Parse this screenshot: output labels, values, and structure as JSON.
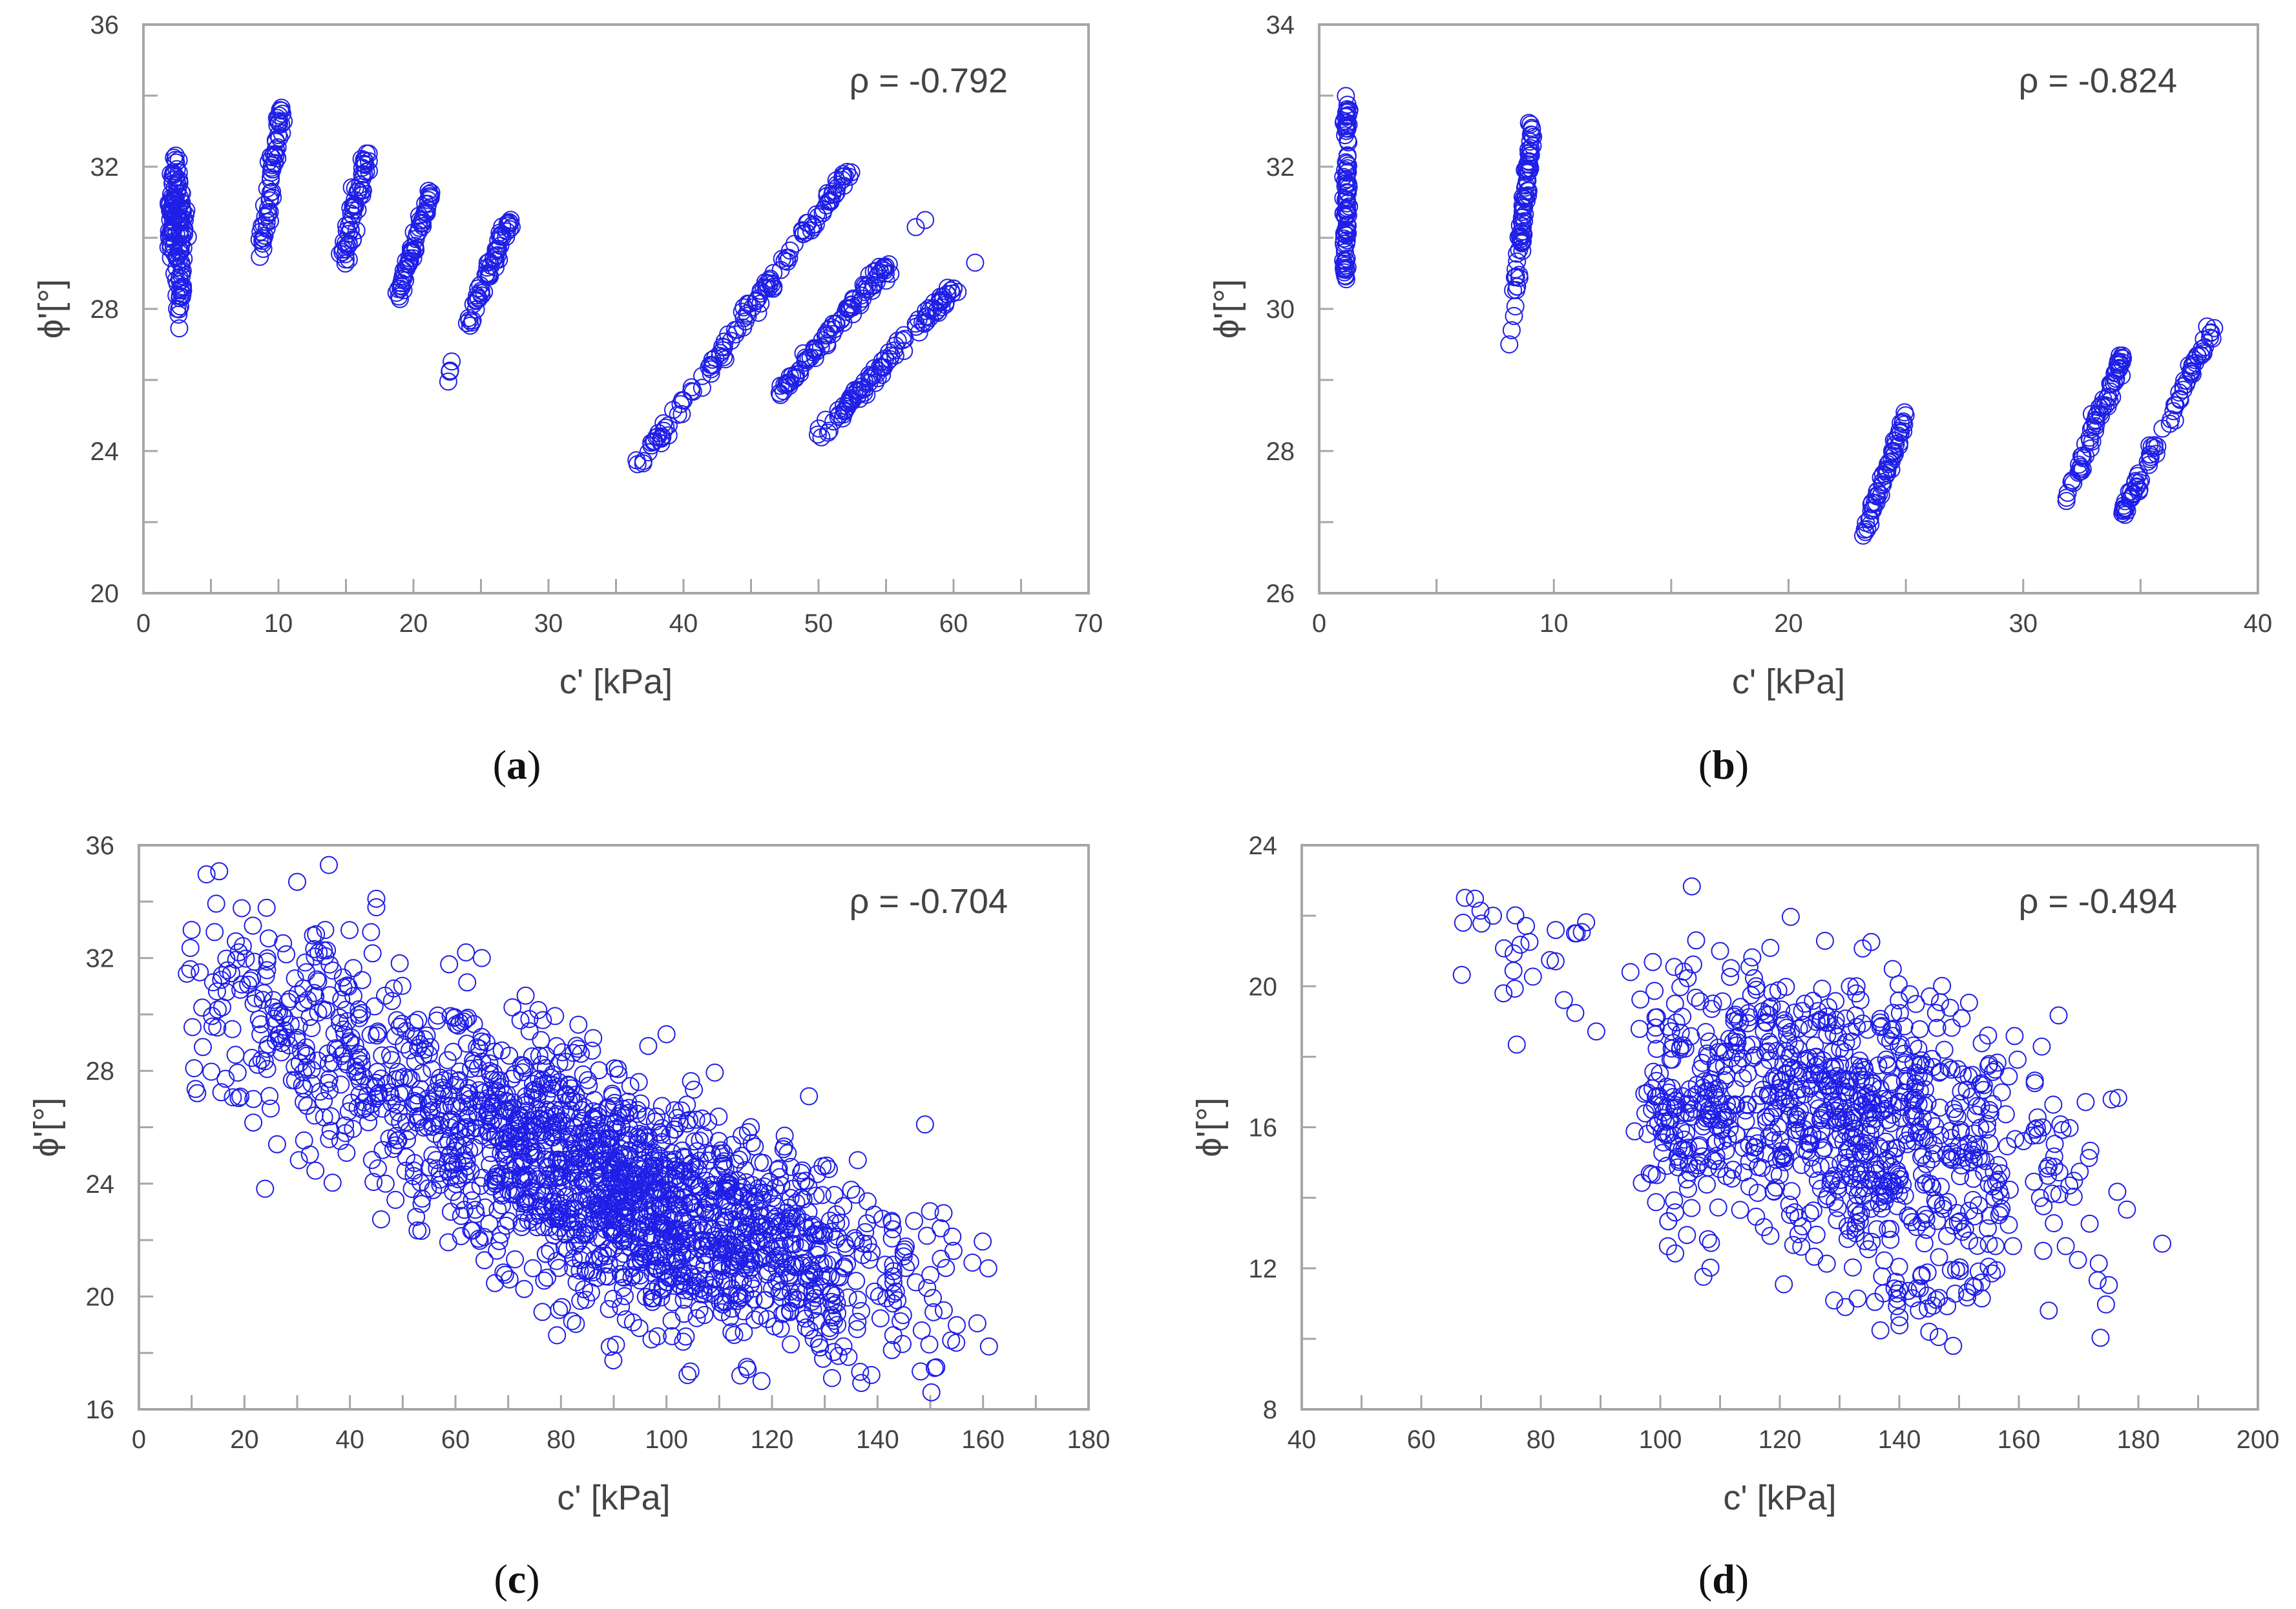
{
  "figure": {
    "marker_color": "#1f1fe6",
    "axis_color": "#a6a6a6",
    "text_color": "#444444"
  },
  "chart_data": [
    {
      "id": "a",
      "type": "scatter",
      "caption": "a",
      "annotation": "ρ = -0.792",
      "xlabel": "c' [kPa]",
      "ylabel": "ϕ'[°]",
      "xlim": [
        0,
        70
      ],
      "ylim": [
        20,
        36
      ],
      "xticks": [
        0,
        10,
        20,
        30,
        40,
        50,
        60,
        70
      ],
      "yticks": [
        20,
        24,
        28,
        32,
        36
      ],
      "xtick_labels": [
        "0",
        "10",
        "20",
        "30",
        "40",
        "50",
        "60",
        "70"
      ],
      "ytick_labels": [
        "20",
        "24",
        "28",
        "32",
        "36"
      ],
      "clusters": [
        {
          "shape": "line",
          "x0": 2.0,
          "y0": 29.6,
          "x1": 2.4,
          "y1": 32.1,
          "n": 70,
          "jx": 0.2,
          "jy": 0.25
        },
        {
          "shape": "line",
          "x0": 2.6,
          "y0": 27.9,
          "x1": 2.9,
          "y1": 31.0,
          "n": 70,
          "jx": 0.2,
          "jy": 0.25
        },
        {
          "shape": "line",
          "x0": 8.8,
          "y0": 29.7,
          "x1": 10.3,
          "y1": 33.7,
          "n": 60,
          "jx": 0.15,
          "jy": 0.1
        },
        {
          "shape": "line",
          "x0": 14.8,
          "y0": 29.4,
          "x1": 16.6,
          "y1": 32.4,
          "n": 60,
          "jx": 0.15,
          "jy": 0.1
        },
        {
          "shape": "line",
          "x0": 18.8,
          "y0": 28.3,
          "x1": 21.3,
          "y1": 31.3,
          "n": 60,
          "jx": 0.15,
          "jy": 0.1
        },
        {
          "shape": "line",
          "x0": 22.3,
          "y0": 25.8,
          "x1": 23.0,
          "y1": 26.4,
          "n": 4,
          "jx": 0.1,
          "jy": 0.1
        },
        {
          "shape": "line",
          "x0": 24.0,
          "y0": 27.5,
          "x1": 27.2,
          "y1": 30.6,
          "n": 60,
          "jx": 0.15,
          "jy": 0.1
        },
        {
          "shape": "line",
          "x0": 36.8,
          "y0": 23.6,
          "x1": 52.2,
          "y1": 31.9,
          "n": 130,
          "jx": 0.2,
          "jy": 0.1
        },
        {
          "shape": "line",
          "x0": 47.0,
          "y0": 25.6,
          "x1": 55.2,
          "y1": 29.3,
          "n": 90,
          "jx": 0.2,
          "jy": 0.1
        },
        {
          "shape": "line",
          "x0": 50.0,
          "y0": 24.4,
          "x1": 60.0,
          "y1": 28.6,
          "n": 100,
          "jx": 0.2,
          "jy": 0.1
        },
        {
          "shape": "points",
          "x": [
            57.2,
            57.9,
            61.6,
            57.4
          ],
          "y": [
            30.3,
            30.5,
            29.3,
            27.7
          ]
        }
      ]
    },
    {
      "id": "b",
      "type": "scatter",
      "caption": "b",
      "annotation": "ρ = -0.824",
      "xlabel": "c' [kPa]",
      "ylabel": "ϕ'[°]",
      "xlim": [
        0,
        40
      ],
      "ylim": [
        26,
        34
      ],
      "xticks": [
        0,
        10,
        20,
        30,
        40
      ],
      "yticks": [
        26,
        28,
        30,
        32,
        34
      ],
      "xtick_labels": [
        "0",
        "10",
        "20",
        "30",
        "40"
      ],
      "ytick_labels": [
        "26",
        "28",
        "30",
        "32",
        "34"
      ],
      "clusters": [
        {
          "shape": "line",
          "x0": 1.1,
          "y0": 30.4,
          "x1": 1.2,
          "y1": 32.9,
          "n": 90,
          "jx": 0.06,
          "jy": 0.1
        },
        {
          "shape": "line",
          "x0": 8.4,
          "y0": 30.3,
          "x1": 9.1,
          "y1": 32.7,
          "n": 80,
          "jx": 0.06,
          "jy": 0.08
        },
        {
          "shape": "points",
          "x": [
            8.1,
            8.3,
            8.2
          ],
          "y": [
            29.5,
            29.9,
            29.7
          ]
        },
        {
          "shape": "line",
          "x0": 23.2,
          "y0": 26.8,
          "x1": 25.0,
          "y1": 28.5,
          "n": 60,
          "jx": 0.05,
          "jy": 0.05
        },
        {
          "shape": "line",
          "x0": 31.8,
          "y0": 27.3,
          "x1": 34.2,
          "y1": 29.3,
          "n": 70,
          "jx": 0.08,
          "jy": 0.06
        },
        {
          "shape": "line",
          "x0": 34.2,
          "y0": 27.1,
          "x1": 38.2,
          "y1": 29.8,
          "n": 80,
          "jx": 0.08,
          "jy": 0.06
        }
      ]
    },
    {
      "id": "c",
      "type": "scatter",
      "caption": "c",
      "annotation": "ρ = -0.704",
      "xlabel": "c' [kPa]",
      "ylabel": "ϕ'[°]",
      "xlim": [
        0,
        180
      ],
      "ylim": [
        16,
        36
      ],
      "xticks": [
        0,
        20,
        40,
        60,
        80,
        100,
        120,
        140,
        160,
        180
      ],
      "yticks": [
        16,
        20,
        24,
        28,
        32,
        36
      ],
      "xtick_labels": [
        "0",
        "20",
        "40",
        "60",
        "80",
        "100",
        "120",
        "140",
        "160",
        "180"
      ],
      "ytick_labels": [
        "16",
        "20",
        "24",
        "28",
        "32",
        "36"
      ],
      "clusters": [
        {
          "shape": "cloud",
          "cx": 88,
          "cy": 24.3,
          "sx": 26,
          "sy": 1.9,
          "slope": -0.072,
          "n": 1500,
          "xmin": 8,
          "xmax": 162
        },
        {
          "shape": "cloud",
          "cx": 28,
          "cy": 29.6,
          "sx": 12,
          "sy": 2.2,
          "slope": -0.06,
          "n": 160,
          "xmin": 8,
          "xmax": 60
        },
        {
          "shape": "cloud",
          "cx": 108,
          "cy": 21.2,
          "sx": 22,
          "sy": 1.6,
          "slope": -0.02,
          "n": 260,
          "xmin": 60,
          "xmax": 162
        },
        {
          "shape": "points",
          "x": [
            36,
            30,
            45,
            100,
            149,
            158,
            161,
            118,
            114,
            127,
            45,
            65,
            62,
            33
          ],
          "y": [
            35.3,
            34.7,
            34.1,
            29.3,
            26.1,
            21.2,
            21.0,
            17.0,
            17.2,
            27.1,
            33.8,
            32.0,
            32.2,
            32.8
          ]
        }
      ]
    },
    {
      "id": "d",
      "type": "scatter",
      "caption": "d",
      "annotation": "ρ = -0.494",
      "xlabel": "c' [kPa]",
      "ylabel": "ϕ'[°]",
      "xlim": [
        40,
        200
      ],
      "ylim": [
        8,
        24
      ],
      "xticks": [
        40,
        60,
        80,
        100,
        120,
        140,
        160,
        180,
        200
      ],
      "yticks": [
        8,
        12,
        16,
        20,
        24
      ],
      "xtick_labels": [
        "40",
        "60",
        "80",
        "100",
        "120",
        "140",
        "160",
        "180",
        "200"
      ],
      "ytick_labels": [
        "8",
        "12",
        "16",
        "20",
        "24"
      ],
      "clusters": [
        {
          "shape": "cloud",
          "cx": 132,
          "cy": 16.2,
          "sx": 18,
          "sy": 1.9,
          "slope": -0.045,
          "n": 850,
          "xmin": 95,
          "xmax": 185
        },
        {
          "shape": "cloud",
          "cx": 103,
          "cy": 15.8,
          "sx": 4,
          "sy": 1.4,
          "slope": -0.1,
          "n": 90,
          "xmin": 96,
          "xmax": 112
        },
        {
          "shape": "cloud",
          "cx": 78,
          "cy": 20.9,
          "sx": 6,
          "sy": 0.8,
          "slope": -0.05,
          "n": 25,
          "xmin": 66,
          "xmax": 90
        },
        {
          "shape": "cloud",
          "cx": 142,
          "cy": 11.4,
          "sx": 6,
          "sy": 0.8,
          "slope": 0.0,
          "n": 25,
          "xmin": 128,
          "xmax": 155
        },
        {
          "shape": "points",
          "x": [
            67,
            72,
            86,
            184,
            165,
            149,
            145,
            110,
            106,
            95
          ],
          "y": [
            21.8,
            22.0,
            21.5,
            12.7,
            10.8,
            9.8,
            10.2,
            21.0,
            21.3,
            20.4
          ]
        }
      ]
    }
  ]
}
